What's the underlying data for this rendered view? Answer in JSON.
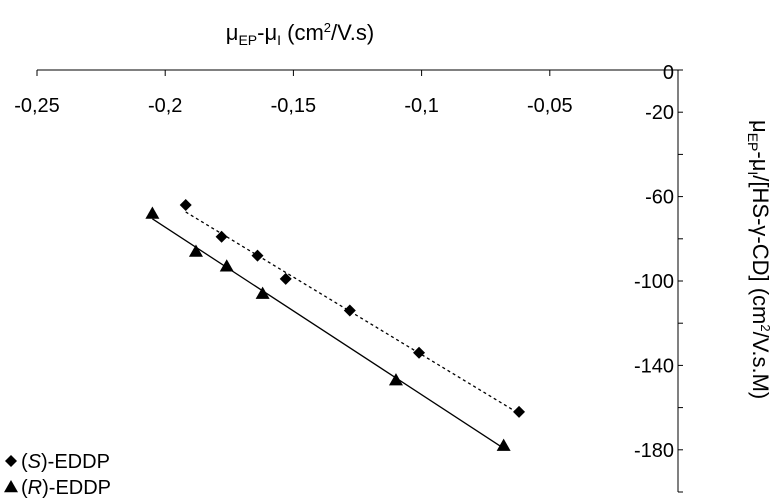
{
  "chart_data": {
    "type": "scatter",
    "xlabel": "μEP-μI (cm²/V.s)",
    "ylabel": "μEP-μI/[HS-γ-CD] (cm²/V.s.M)",
    "xlim": [
      -0.25,
      0
    ],
    "ylim": [
      -200,
      0
    ],
    "x_ticks": [
      "-0,25",
      "-0,2",
      "-0,15",
      "-0,1",
      "-0,05"
    ],
    "y_ticks": [
      "0",
      "-20",
      "-60",
      "-100",
      "-140",
      "-180"
    ],
    "legend_position": "bottom-left",
    "series": [
      {
        "name": "(S)-EDDP",
        "marker": "diamond",
        "line": "dotted",
        "color": "#000000",
        "x": [
          -0.192,
          -0.178,
          -0.164,
          -0.153,
          -0.128,
          -0.101,
          -0.062
        ],
        "y": [
          -64,
          -79,
          -88,
          -99,
          -114,
          -134,
          -162
        ]
      },
      {
        "name": "(R)-EDDP",
        "marker": "triangle",
        "line": "solid",
        "color": "#000000",
        "x": [
          -0.205,
          -0.188,
          -0.176,
          -0.162,
          -0.11,
          -0.068
        ],
        "y": [
          -68,
          -86,
          -93,
          -106,
          -147,
          -178
        ]
      }
    ]
  }
}
